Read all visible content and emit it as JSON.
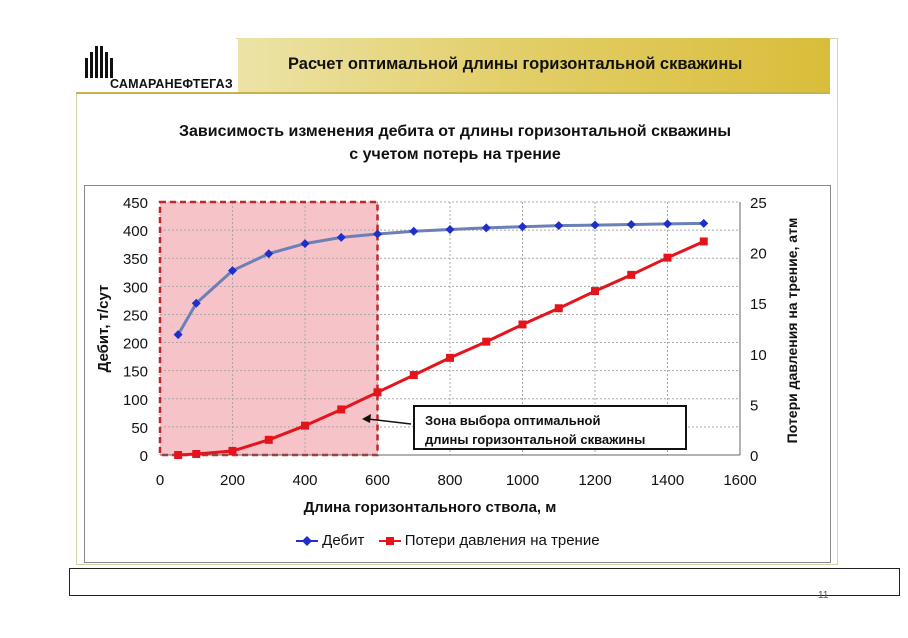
{
  "header": {
    "logo_text": "САМАРАНЕФТЕГАЗ",
    "title": "Расчет оптимальной длины горизонтальной скважины"
  },
  "page_number": "11",
  "colors": {
    "debit_series": "#1f2fc8",
    "debit_line": "#6b7fb8",
    "loss_series": "#e3141b",
    "zone_fill": "#f6c3c8",
    "zone_border": "#c0272d",
    "title_band": "#dcc24a"
  },
  "chart_data": {
    "type": "line",
    "title_lines": [
      "Зависимость изменения дебита от длины горизонтальной скважины",
      "с учетом потерь на трение"
    ],
    "xlabel": "Длина горизонтального ствола, м",
    "ylabel": "Дебит, т/сут",
    "y2label": "Потери давления на трение, атм",
    "xlim": [
      0,
      1600
    ],
    "ylim": [
      0,
      450
    ],
    "y2lim": [
      0,
      25
    ],
    "x_ticks": [
      "0",
      "200",
      "400",
      "600",
      "800",
      "1000",
      "1200",
      "1400",
      "1600"
    ],
    "y_ticks": [
      "0",
      "50",
      "100",
      "150",
      "200",
      "250",
      "300",
      "350",
      "400",
      "450"
    ],
    "y2_ticks": [
      "0",
      "5",
      "10",
      "15",
      "20",
      "25"
    ],
    "grid": true,
    "legend_position": "bottom",
    "x": [
      50,
      100,
      200,
      300,
      400,
      500,
      600,
      700,
      800,
      900,
      1000,
      1100,
      1200,
      1300,
      1400,
      1500
    ],
    "series": [
      {
        "name": "Дебит",
        "axis": "left",
        "marker": "diamond",
        "values": [
          214,
          270,
          328,
          358,
          376,
          387,
          393,
          398,
          401,
          404,
          406,
          408,
          409,
          410,
          411,
          412
        ]
      },
      {
        "name": "Потери давления на трение",
        "axis": "right",
        "marker": "square",
        "values": [
          0.0,
          0.1,
          0.4,
          1.5,
          2.9,
          4.5,
          6.2,
          7.9,
          9.6,
          11.2,
          12.9,
          14.5,
          16.2,
          17.8,
          19.5,
          21.1
        ]
      }
    ],
    "shaded_zone": {
      "x_from": 0,
      "x_to": 600
    },
    "annotation": [
      "Зона выбора оптимальной",
      "длины горизонтальной скважины"
    ]
  }
}
